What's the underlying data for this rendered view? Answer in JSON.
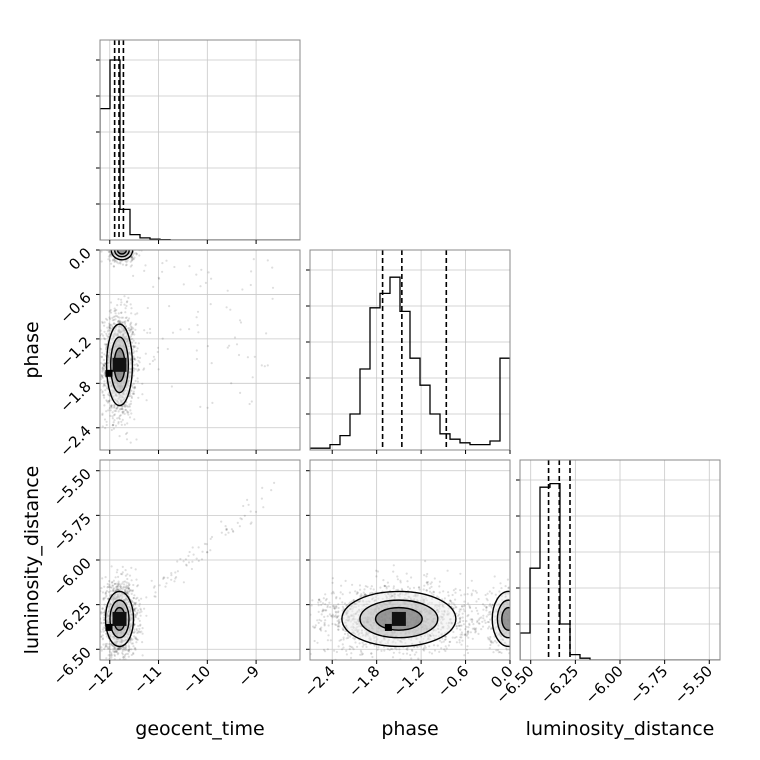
{
  "chart_data": {
    "type": "corner",
    "parameters": [
      "geocent_time",
      "phase",
      "luminosity_distance"
    ],
    "grid": true,
    "ranges": {
      "geocent_time": [
        -12.2,
        -8.1
      ],
      "phase": [
        -2.7,
        0.0
      ],
      "luminosity_distance": [
        -6.56,
        -5.44
      ]
    },
    "ticks": {
      "geocent_time": {
        "values": [
          -12,
          -11,
          -10,
          -9
        ],
        "labels": [
          "−12",
          "−11",
          "−10",
          "−9"
        ]
      },
      "phase": {
        "values": [
          -2.4,
          -1.8,
          -1.2,
          -0.6,
          0.0
        ],
        "labels": [
          "−2.4",
          "−1.8",
          "−1.2",
          "−0.6",
          "0.0"
        ]
      },
      "luminosity_distance": {
        "values": [
          -6.5,
          -6.25,
          -6.0,
          -5.75,
          -5.5
        ],
        "labels": [
          "−6.50",
          "−6.25",
          "−6.00",
          "−5.75",
          "−5.50"
        ]
      }
    },
    "marginals": {
      "geocent_time": {
        "bin_edges": [
          -12.2,
          -11.995,
          -11.79,
          -11.585,
          -11.38,
          -11.175,
          -10.97,
          -10.765,
          -10.56,
          -10.355,
          -10.15,
          -9.945,
          -9.74,
          -9.535,
          -9.33,
          -9.125,
          -8.92,
          -8.715,
          -8.51,
          -8.305,
          -8.1
        ],
        "counts": [
          0.73,
          1.0,
          0.17,
          0.03,
          0.012,
          0.005,
          0.002,
          0,
          0,
          0,
          0,
          0,
          0,
          0,
          0,
          0,
          0,
          0,
          0,
          0
        ],
        "quantiles": [
          -11.9,
          -11.81,
          -11.72
        ]
      },
      "phase": {
        "bin_edges": [
          -2.7,
          -2.565,
          -2.43,
          -2.295,
          -2.16,
          -2.025,
          -1.89,
          -1.755,
          -1.62,
          -1.485,
          -1.35,
          -1.215,
          -1.08,
          -0.945,
          -0.81,
          -0.675,
          -0.54,
          -0.405,
          -0.27,
          -0.135,
          0.0
        ],
        "counts": [
          0.01,
          0.01,
          0.03,
          0.08,
          0.2,
          0.45,
          0.79,
          0.87,
          0.96,
          0.77,
          0.51,
          0.36,
          0.2,
          0.09,
          0.06,
          0.04,
          0.03,
          0.03,
          0.05,
          0.51
        ],
        "quantiles": [
          -1.72,
          -1.46,
          -0.86
        ]
      },
      "luminosity_distance": {
        "bin_edges": [
          -6.56,
          -6.504,
          -6.448,
          -6.392,
          -6.336,
          -6.28,
          -6.224,
          -6.168,
          -6.112,
          -6.056,
          -6.0,
          -5.944,
          -5.888,
          -5.832,
          -5.776,
          -5.72,
          -5.664,
          -5.608,
          -5.552,
          -5.496,
          -5.44
        ],
        "counts": [
          0.15,
          0.51,
          0.96,
          0.98,
          0.2,
          0.03,
          0.01,
          0,
          0,
          0,
          0,
          0,
          0,
          0,
          0,
          0,
          0,
          0,
          0,
          0
        ],
        "quantiles": [
          -6.4,
          -6.34,
          -6.28
        ]
      }
    },
    "joint_density_peaks": [
      {
        "x": "geocent_time",
        "y": "phase",
        "center": [
          -11.8,
          -1.55
        ],
        "sigma": [
          0.12,
          0.25
        ]
      },
      {
        "x": "geocent_time",
        "y": "phase",
        "center": [
          -11.75,
          0.0
        ],
        "sigma": [
          0.1,
          0.06
        ]
      },
      {
        "x": "geocent_time",
        "y": "luminosity_distance",
        "center": [
          -11.8,
          -6.33
        ],
        "sigma": [
          0.13,
          0.07
        ]
      },
      {
        "x": "phase",
        "y": "luminosity_distance",
        "center": [
          -1.5,
          -6.33
        ],
        "sigma": [
          0.35,
          0.07
        ]
      },
      {
        "x": "phase",
        "y": "luminosity_distance",
        "center": [
          -0.02,
          -6.33
        ],
        "sigma": [
          0.1,
          0.07
        ]
      }
    ]
  }
}
